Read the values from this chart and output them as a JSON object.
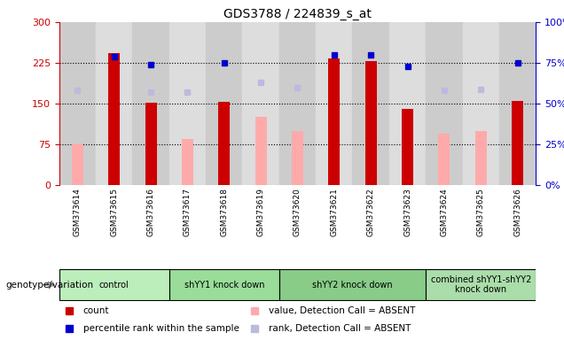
{
  "title": "GDS3788 / 224839_s_at",
  "samples": [
    "GSM373614",
    "GSM373615",
    "GSM373616",
    "GSM373617",
    "GSM373618",
    "GSM373619",
    "GSM373620",
    "GSM373621",
    "GSM373622",
    "GSM373623",
    "GSM373624",
    "GSM373625",
    "GSM373626"
  ],
  "count_values": [
    null,
    243,
    152,
    null,
    154,
    null,
    null,
    234,
    229,
    141,
    null,
    null,
    155
  ],
  "count_absent": [
    75,
    null,
    null,
    85,
    null,
    125,
    100,
    null,
    null,
    null,
    95,
    100,
    null
  ],
  "percentile_rank": [
    null,
    79,
    74,
    null,
    75,
    null,
    null,
    80,
    80,
    73,
    null,
    null,
    75
  ],
  "rank_absent": [
    58,
    null,
    57,
    57,
    null,
    63,
    60,
    null,
    null,
    null,
    58,
    59,
    null
  ],
  "groups": [
    {
      "label": "control",
      "start": 0,
      "end": 3,
      "color": "#bbeebb"
    },
    {
      "label": "shYY1 knock down",
      "start": 3,
      "end": 6,
      "color": "#99dd99"
    },
    {
      "label": "shYY2 knock down",
      "start": 6,
      "end": 10,
      "color": "#88cc88"
    },
    {
      "label": "combined shYY1-shYY2\nknock down",
      "start": 10,
      "end": 13,
      "color": "#aaddaa"
    }
  ],
  "left_ylim": [
    0,
    300
  ],
  "right_ylim": [
    0,
    100
  ],
  "left_yticks": [
    0,
    75,
    150,
    225,
    300
  ],
  "right_yticks": [
    0,
    25,
    50,
    75,
    100
  ],
  "left_yticklabels": [
    "0",
    "75",
    "150",
    "225",
    "300"
  ],
  "right_yticklabels": [
    "0%",
    "25%",
    "50%",
    "75%",
    "100%"
  ],
  "count_color": "#cc0000",
  "absent_value_color": "#ffaaaa",
  "percentile_color": "#0000cc",
  "rank_absent_color": "#bbbbdd",
  "col_bg_odd": "#cccccc",
  "col_bg_even": "#dddddd"
}
